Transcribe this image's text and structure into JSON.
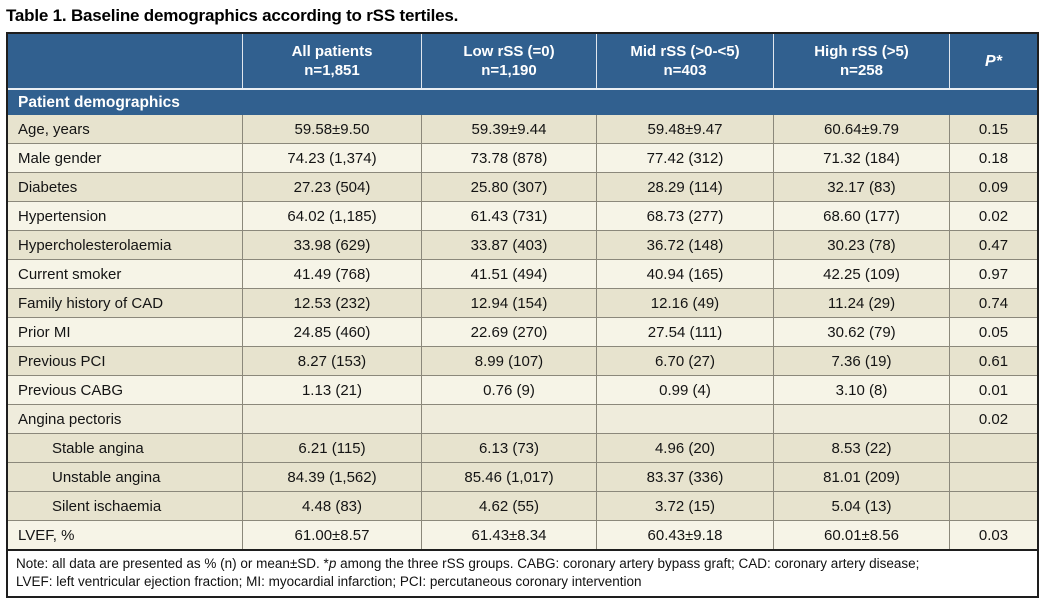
{
  "title": "Table 1. Baseline demographics according to rSS tertiles.",
  "colors": {
    "header_blue": "#31608F",
    "row_beige": "#E7E3CE",
    "row_cream": "#F6F4E7",
    "row_mid": "#EFECDC",
    "border_gray": "#8B887B",
    "outer_border": "#1E1E1E"
  },
  "table": {
    "columns": [
      {
        "label": "All patients",
        "n": "n=1,851"
      },
      {
        "label": "Low rSS (=0)",
        "n": "n=1,190"
      },
      {
        "label": "Mid rSS (>0-<5)",
        "n": "n=403"
      },
      {
        "label": "High rSS (>5)",
        "n": "n=258"
      }
    ],
    "p_header": "P*",
    "section_header": "Patient demographics",
    "rows": [
      {
        "label": "Age, years",
        "values": [
          "59.58±9.50",
          "59.39±9.44",
          "59.48±9.47",
          "60.64±9.79"
        ],
        "p": "0.15",
        "shade": "beige",
        "indent": false
      },
      {
        "label": "Male gender",
        "values": [
          "74.23 (1,374)",
          "73.78 (878)",
          "77.42 (312)",
          "71.32 (184)"
        ],
        "p": "0.18",
        "shade": "cream",
        "indent": false
      },
      {
        "label": "Diabetes",
        "values": [
          "27.23 (504)",
          "25.80 (307)",
          "28.29 (114)",
          "32.17 (83)"
        ],
        "p": "0.09",
        "shade": "beige",
        "indent": false
      },
      {
        "label": "Hypertension",
        "values": [
          "64.02 (1,185)",
          "61.43 (731)",
          "68.73 (277)",
          "68.60 (177)"
        ],
        "p": "0.02",
        "shade": "cream",
        "indent": false
      },
      {
        "label": "Hypercholesterolaemia",
        "values": [
          "33.98 (629)",
          "33.87 (403)",
          "36.72 (148)",
          "30.23 (78)"
        ],
        "p": "0.47",
        "shade": "beige",
        "indent": false
      },
      {
        "label": "Current smoker",
        "values": [
          "41.49 (768)",
          "41.51 (494)",
          "40.94 (165)",
          "42.25 (109)"
        ],
        "p": "0.97",
        "shade": "cream",
        "indent": false
      },
      {
        "label": "Family history of CAD",
        "values": [
          "12.53 (232)",
          "12.94 (154)",
          "12.16 (49)",
          "11.24 (29)"
        ],
        "p": "0.74",
        "shade": "beige",
        "indent": false
      },
      {
        "label": "Prior MI",
        "values": [
          "24.85 (460)",
          "22.69 (270)",
          "27.54 (111)",
          "30.62 (79)"
        ],
        "p": "0.05",
        "shade": "cream",
        "indent": false
      },
      {
        "label": "Previous PCI",
        "values": [
          "8.27 (153)",
          "8.99 (107)",
          "6.70 (27)",
          "7.36 (19)"
        ],
        "p": "0.61",
        "shade": "beige",
        "indent": false
      },
      {
        "label": "Previous CABG",
        "values": [
          "1.13 (21)",
          "0.76 (9)",
          "0.99 (4)",
          "3.10 (8)"
        ],
        "p": "0.01",
        "shade": "cream",
        "indent": false
      },
      {
        "label": "Angina pectoris",
        "values": [
          "",
          "",
          "",
          ""
        ],
        "p": "0.02",
        "shade": "mid",
        "indent": false
      },
      {
        "label": "Stable angina",
        "values": [
          "6.21 (115)",
          "6.13 (73)",
          "4.96 (20)",
          "8.53 (22)"
        ],
        "p": "",
        "shade": "beige",
        "indent": true
      },
      {
        "label": "Unstable angina",
        "values": [
          "84.39 (1,562)",
          "85.46 (1,017)",
          "83.37 (336)",
          "81.01 (209)"
        ],
        "p": "",
        "shade": "beige",
        "indent": true
      },
      {
        "label": "Silent ischaemia",
        "values": [
          "4.48 (83)",
          "4.62 (55)",
          "3.72 (15)",
          "5.04 (13)"
        ],
        "p": "",
        "shade": "beige",
        "indent": true
      },
      {
        "label": "LVEF, %",
        "values": [
          "61.00±8.57",
          "61.43±8.34",
          "60.43±9.18",
          "60.01±8.56"
        ],
        "p": "0.03",
        "shade": "cream",
        "indent": false
      }
    ]
  },
  "note": {
    "line1_part1": "Note: all data are presented as % (n) or mean±SD. *",
    "line1_italic": "p",
    "line1_part2": " among the three rSS groups. CABG: coronary artery bypass graft; CAD: coronary artery disease;",
    "line2": "LVEF: left ventricular ejection fraction; MI: myocardial infarction; PCI: percutaneous coronary intervention"
  }
}
